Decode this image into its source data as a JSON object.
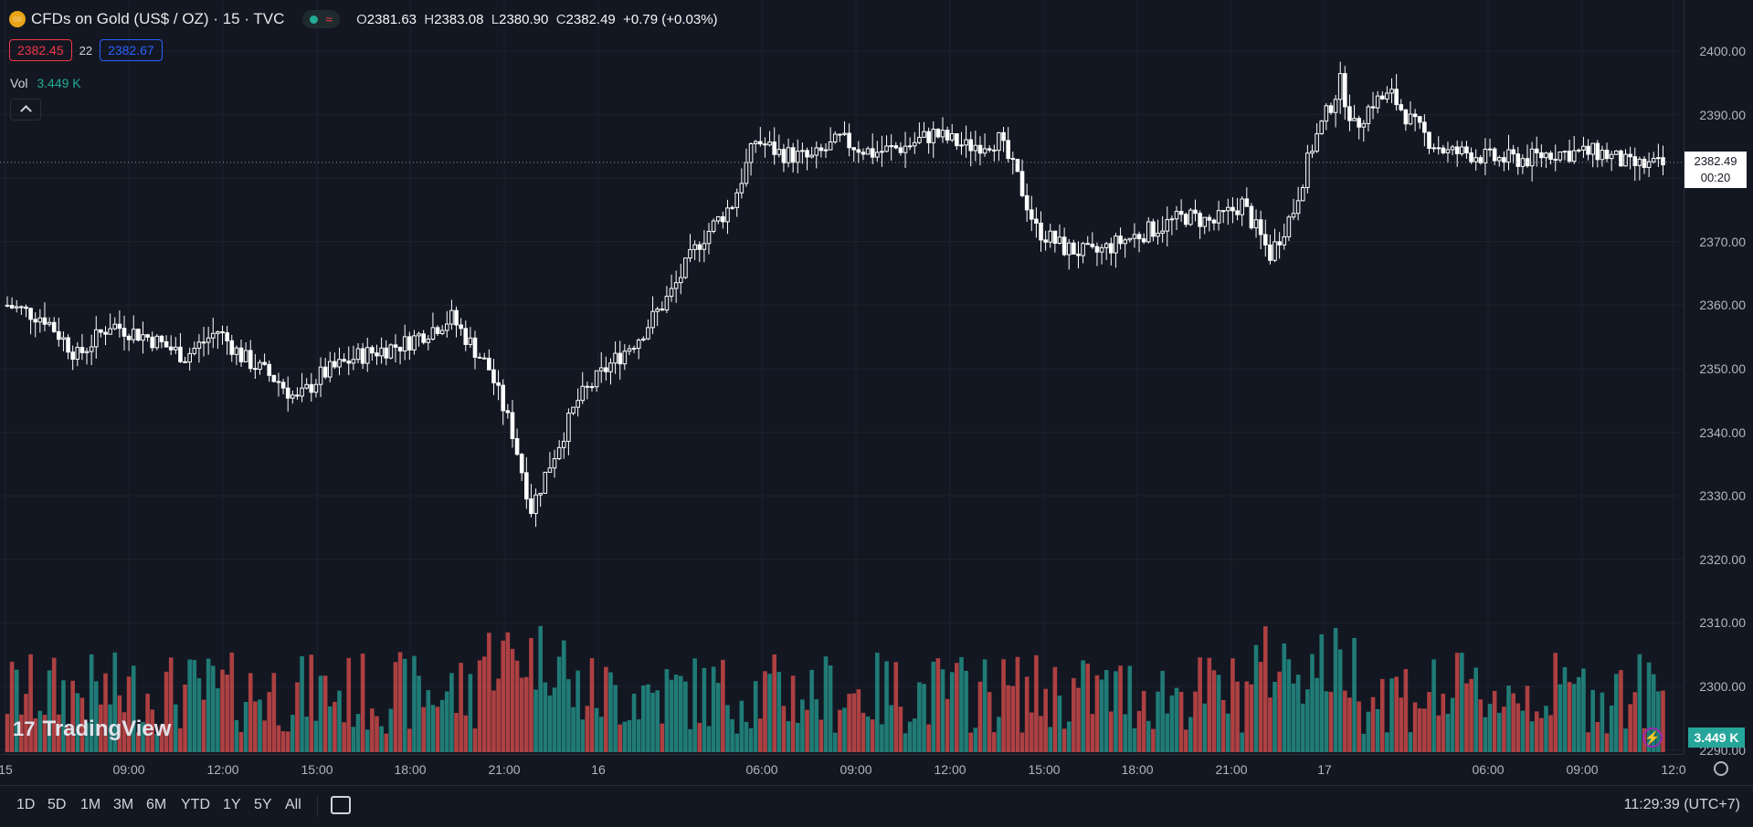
{
  "header": {
    "symbol_title": "CFDs on Gold (US$ / OZ) · 15 · TVC",
    "open_key": "O",
    "open": "2381.63",
    "high_key": "H",
    "high": "2383.08",
    "low_key": "L",
    "low": "2380.90",
    "close_key": "C",
    "close": "2382.49",
    "change": "+0.79 (+0.03%)",
    "sell_price": "2382.45",
    "spread": "22",
    "buy_price": "2382.67",
    "volume_label": "Vol",
    "volume_value": "3.449 K"
  },
  "price_axis": {
    "ticks": [
      "2400.00",
      "2390.00",
      "2380.00",
      "2370.00",
      "2360.00",
      "2350.00",
      "2340.00",
      "2330.00",
      "2320.00",
      "2310.00",
      "2300.00",
      "2290.00"
    ],
    "last_price": "2382.49",
    "countdown": "00:20",
    "volume_badge": "3.449 K"
  },
  "time_axis": {
    "labels": [
      "15",
      "09:00",
      "12:00",
      "15:00",
      "18:00",
      "21:00",
      "16",
      "06:00",
      "09:00",
      "12:00",
      "15:00",
      "18:00",
      "21:00",
      "17",
      "06:00",
      "09:00",
      "12:0"
    ]
  },
  "bottom_bar": {
    "ranges": [
      "1D",
      "5D",
      "1M",
      "3M",
      "6M",
      "YTD",
      "1Y",
      "5Y",
      "All"
    ],
    "clock": "11:29:39 (UTC+7)"
  },
  "watermark": "TradingView",
  "colors": {
    "up": "#ffffff",
    "down": "#ffffff",
    "vol_up": "#26a69a",
    "vol_down": "#ef5350",
    "background": "#131722"
  },
  "chart_data": {
    "type": "candlestick",
    "symbol": "CFDs on Gold (US$ / OZ)",
    "interval": "15",
    "ylim": [
      2290,
      2405
    ],
    "keypoints": [
      [
        0,
        2360
      ],
      [
        8,
        2358
      ],
      [
        15,
        2352
      ],
      [
        22,
        2357
      ],
      [
        30,
        2355
      ],
      [
        38,
        2352
      ],
      [
        45,
        2356
      ],
      [
        50,
        2352
      ],
      [
        58,
        2348
      ],
      [
        62,
        2345
      ],
      [
        67,
        2349
      ],
      [
        75,
        2352
      ],
      [
        85,
        2354
      ],
      [
        95,
        2358
      ],
      [
        103,
        2350
      ],
      [
        108,
        2340
      ],
      [
        112,
        2328
      ],
      [
        116,
        2335
      ],
      [
        122,
        2345
      ],
      [
        128,
        2350
      ],
      [
        135,
        2355
      ],
      [
        142,
        2362
      ],
      [
        148,
        2370
      ],
      [
        155,
        2376
      ],
      [
        160,
        2386
      ],
      [
        165,
        2384
      ],
      [
        172,
        2383
      ],
      [
        178,
        2386
      ],
      [
        185,
        2384
      ],
      [
        192,
        2385
      ],
      [
        198,
        2387
      ],
      [
        205,
        2385
      ],
      [
        212,
        2386
      ],
      [
        216,
        2380
      ],
      [
        220,
        2372
      ],
      [
        226,
        2369
      ],
      [
        232,
        2368
      ],
      [
        238,
        2370
      ],
      [
        245,
        2372
      ],
      [
        252,
        2374
      ],
      [
        258,
        2373
      ],
      [
        264,
        2376
      ],
      [
        270,
        2368
      ],
      [
        275,
        2375
      ],
      [
        279,
        2385
      ],
      [
        282,
        2390
      ],
      [
        285,
        2395
      ],
      [
        288,
        2388
      ],
      [
        292,
        2392
      ],
      [
        296,
        2393
      ],
      [
        300,
        2389
      ],
      [
        304,
        2386
      ],
      [
        308,
        2384
      ],
      [
        312,
        2384
      ],
      [
        318,
        2383
      ],
      [
        325,
        2383
      ],
      [
        330,
        2384
      ],
      [
        336,
        2384
      ],
      [
        341,
        2384
      ],
      [
        347,
        2382
      ],
      [
        354,
        2382
      ]
    ]
  }
}
